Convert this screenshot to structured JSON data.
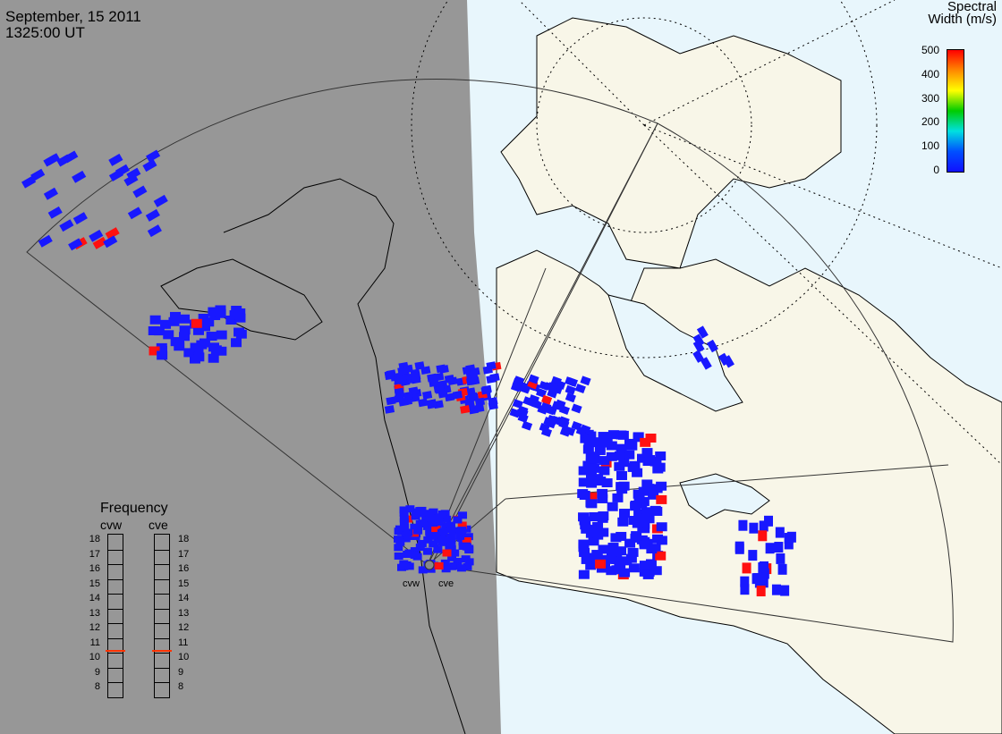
{
  "header": {
    "date": "September, 15 2011",
    "time": "1325:00 UT"
  },
  "colorbar": {
    "title_line1": "Spectral",
    "title_line2": "Width (m/s)",
    "ticks": [
      "500",
      "400",
      "300",
      "200",
      "100",
      "0"
    ],
    "colors": [
      "#ff0000",
      "#ff8800",
      "#ffff00",
      "#00cc00",
      "#00e0e0",
      "#0050ff",
      "#1010ff"
    ]
  },
  "frequency_panel": {
    "title": "Frequency",
    "sites": [
      {
        "name": "cvw",
        "selected_mhz": 10.6
      },
      {
        "name": "cve",
        "selected_mhz": 10.6
      }
    ],
    "scale_left": [
      "18",
      "17",
      "16",
      "15",
      "14",
      "13",
      "12",
      "11",
      "10",
      "9",
      "8"
    ],
    "scale_right": [
      "18",
      "17",
      "16",
      "15",
      "14",
      "13",
      "12",
      "11",
      "10",
      "9",
      "8"
    ],
    "marker_color": "#ff3300"
  },
  "radar_sites": [
    {
      "name": "cvw"
    },
    {
      "name": "cve"
    }
  ],
  "legend_colors": {
    "night": "#979797",
    "day_land": "#f8f6e8",
    "day_water": "#e8f6fc",
    "echo_low": "#1818ff",
    "echo_high": "#ff1010"
  }
}
